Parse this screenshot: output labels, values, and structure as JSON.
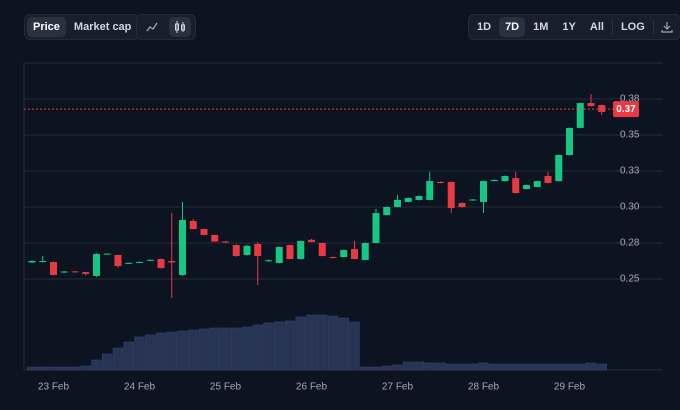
{
  "toolbar": {
    "tabs": [
      "Price",
      "Market cap"
    ],
    "active_tab": 0,
    "ranges": [
      "1D",
      "7D",
      "1M",
      "1Y",
      "All"
    ],
    "active_range": 1,
    "scale_button": "LOG"
  },
  "chart_data": {
    "type": "candlestick",
    "categories": [
      null,
      null,
      "23 Feb",
      null,
      null,
      null,
      null,
      null,
      null,
      null,
      "24 Feb",
      null,
      null,
      null,
      null,
      null,
      null,
      null,
      "25 Feb",
      null,
      null,
      null,
      null,
      null,
      null,
      null,
      "26 Feb",
      null,
      null,
      null,
      null,
      null,
      null,
      null,
      "27 Feb",
      null,
      null,
      null,
      null,
      null,
      null,
      null,
      "28 Feb",
      null,
      null,
      null,
      null,
      null,
      null,
      null,
      "29 Feb",
      null,
      null,
      null
    ],
    "open": [
      0.2615,
      0.262,
      0.2618,
      0.2545,
      0.2553,
      0.2548,
      0.2521,
      0.2672,
      0.2667,
      0.2608,
      0.2615,
      0.2626,
      0.2639,
      0.2625,
      0.2528,
      0.2903,
      0.2847,
      0.2806,
      0.276,
      0.2736,
      0.2667,
      0.2743,
      0.2625,
      0.2611,
      0.2736,
      0.2639,
      0.2772,
      0.275,
      0.2653,
      0.2653,
      0.2708,
      0.2632,
      0.275,
      0.2944,
      0.3,
      0.3035,
      0.3049,
      0.3049,
      0.3174,
      0.3174,
      0.3028,
      0.3046,
      0.3035,
      0.318,
      0.318,
      0.3201,
      0.3125,
      0.3139,
      0.3215,
      0.318,
      0.3361,
      0.3549,
      0.3722,
      0.3708
    ],
    "high": [
      0.263,
      0.266,
      0.262,
      0.2555,
      0.2555,
      0.255,
      0.268,
      0.2678,
      0.2667,
      0.2615,
      0.2622,
      0.2636,
      0.2642,
      0.2958,
      0.3035,
      0.2917,
      0.285,
      0.2808,
      0.2765,
      0.274,
      0.2735,
      0.2757,
      0.2635,
      0.2725,
      0.2738,
      0.2768,
      0.2778,
      0.2752,
      0.2656,
      0.2704,
      0.2764,
      0.2753,
      0.2986,
      0.3004,
      0.3083,
      0.3066,
      0.3079,
      0.3243,
      0.3178,
      0.3177,
      0.3031,
      0.3055,
      0.3183,
      0.3191,
      0.3218,
      0.3243,
      0.3156,
      0.3183,
      0.3243,
      0.3364,
      0.3552,
      0.3725,
      0.3785,
      0.3711
    ],
    "low": [
      0.261,
      0.2615,
      0.2525,
      0.2542,
      0.2544,
      0.2525,
      0.2515,
      0.267,
      0.258,
      0.2605,
      0.2612,
      0.2624,
      0.2574,
      0.2368,
      0.2521,
      0.2845,
      0.2804,
      0.2758,
      0.2752,
      0.2655,
      0.2662,
      0.2458,
      0.262,
      0.2608,
      0.2636,
      0.2636,
      0.2754,
      0.2657,
      0.2643,
      0.265,
      0.2636,
      0.263,
      0.2748,
      0.2941,
      0.2997,
      0.3032,
      0.3046,
      0.3046,
      0.3164,
      0.2958,
      0.2997,
      0.3043,
      0.2958,
      0.3177,
      0.3177,
      0.3094,
      0.3122,
      0.3136,
      0.3164,
      0.3177,
      0.3358,
      0.3546,
      0.3698,
      0.3639
    ],
    "close": [
      0.2625,
      0.2625,
      0.2528,
      0.2552,
      0.2546,
      0.2535,
      0.2674,
      0.2676,
      0.259,
      0.2612,
      0.2618,
      0.2633,
      0.2576,
      0.2615,
      0.291,
      0.2847,
      0.2806,
      0.276,
      0.2757,
      0.266,
      0.273,
      0.266,
      0.263,
      0.2722,
      0.2639,
      0.2764,
      0.2757,
      0.266,
      0.2646,
      0.2701,
      0.2639,
      0.275,
      0.2958,
      0.3,
      0.3049,
      0.3063,
      0.3076,
      0.3181,
      0.3167,
      0.2993,
      0.3,
      0.3052,
      0.318,
      0.3188,
      0.3215,
      0.3097,
      0.3153,
      0.318,
      0.3167,
      0.3361,
      0.3549,
      0.3722,
      0.3701,
      0.366
    ],
    "volume": [
      3,
      3,
      3,
      3,
      3,
      4,
      10,
      16,
      22,
      28,
      33,
      35,
      37,
      38,
      39,
      40,
      41,
      42,
      42,
      42,
      43,
      45,
      47,
      48,
      49,
      53,
      55,
      55,
      54,
      52,
      48,
      3,
      3,
      4,
      5,
      8,
      8,
      7,
      7,
      6,
      6,
      6,
      7,
      6,
      6,
      6,
      6,
      6,
      6,
      6,
      6,
      6,
      7,
      6
    ],
    "up_color": "#16c784",
    "down_color": "#ea3943",
    "volume_color": "#283454",
    "ylim": [
      0.2,
      0.4
    ],
    "yticks": [
      0.25,
      {
        "value": 0.275,
        "label": "0.28"
      },
      {
        "value": 0.3,
        "label": "0.30"
      },
      {
        "value": 0.325,
        "label": "0.33"
      },
      0.35,
      {
        "value": 0.375,
        "label": "0.38"
      }
    ],
    "last_price": 0.368,
    "last_price_label": "0.37",
    "grid": true
  }
}
